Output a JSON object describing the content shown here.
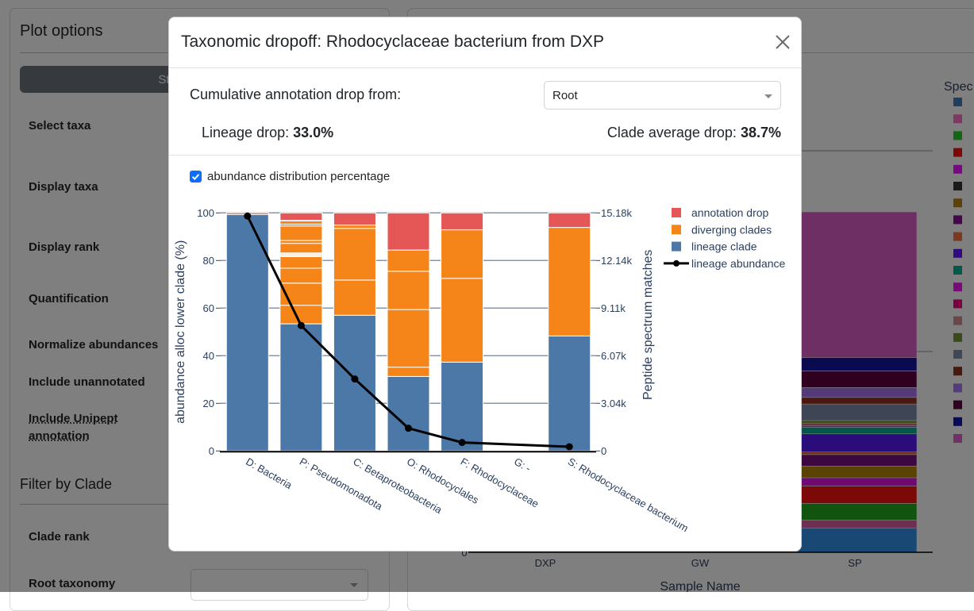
{
  "left_panel": {
    "title": "Plot options",
    "mode_button": "Stacked barplot",
    "labels": [
      "Select taxa",
      "Display taxa",
      "Display rank",
      "Quantification",
      "Normalize abundances",
      "Include unannotated"
    ],
    "unipept_label_line1": "Include Unipept",
    "unipept_label_line2": "annotation",
    "filter_title": "Filter by Clade",
    "clade_rank_label": "Clade rank",
    "root_taxonomy_label": "Root taxonomy"
  },
  "background_chart": {
    "legend_title": "Spec",
    "zero_tick": "0",
    "samples": [
      "DXP",
      "GW",
      "SP"
    ],
    "xlabel": "Sample Name",
    "legend_colors": [
      "#3e7fbf",
      "#fa75c0",
      "#27cc27",
      "#fc0c0c",
      "#ee14ff",
      "#353535",
      "#b48410",
      "#880f93",
      "#f47340",
      "#6014ff",
      "#00b493",
      "#f414f4",
      "#f4007f",
      "#d49090",
      "#74943a",
      "#7c90b0",
      "#8c3420",
      "#aa74fc",
      "#600040",
      "#1414b4",
      "#e660cc"
    ],
    "sp_segments": [
      {
        "color": "#3491e8",
        "share": 29
      },
      {
        "color": "#dc60a0",
        "share": 10
      },
      {
        "color": "#22a81e",
        "share": 20
      },
      {
        "color": "#f81010",
        "share": 21
      },
      {
        "color": "#dc14e4",
        "share": 10
      },
      {
        "color": "#b48400",
        "share": 14
      },
      {
        "color": "#781080",
        "share": 14
      },
      {
        "color": "#e06030",
        "share": 3
      },
      {
        "color": "#5418f4",
        "share": 22
      },
      {
        "color": "#00ae94",
        "share": 8
      },
      {
        "color": "#ee10ee",
        "share": 2
      },
      {
        "color": "#c07070",
        "share": 3
      },
      {
        "color": "#709020",
        "share": 3
      },
      {
        "color": "#7c8cac",
        "share": 20
      },
      {
        "color": "#943020",
        "share": 8
      },
      {
        "color": "#aa74f4",
        "share": 12
      },
      {
        "color": "#600040",
        "share": 20
      },
      {
        "color": "#1414a0",
        "share": 16
      },
      {
        "color": "#dc60c8",
        "share": 176
      }
    ]
  },
  "modal": {
    "title": "Taxonomic dropoff: Rhodocyclaceae bacterium from DXP",
    "close_icon": "close-icon",
    "drop_from_label": "Cumulative annotation drop from:",
    "drop_from_value": "Root",
    "lineage_drop_label": "Lineage drop:",
    "lineage_drop_value": "33.0%",
    "clade_avg_label": "Clade average drop:",
    "clade_avg_value": "38.7%",
    "checkbox_label": "abundance distribution percentage",
    "checkbox_checked": true
  },
  "chart_data": {
    "type": "bar",
    "barmode": "stack",
    "categories": [
      "D: Bacteria",
      "P: Pseudomonadota",
      "C: Betaproteobacteria",
      "O: Rhodocyclales",
      "F: Rhodocyclaceae",
      "G: -",
      "S: Rhodocyclaceae bacterium"
    ],
    "ylabel": "abundance alloc lower clade (%)",
    "y2label": "Peptide spectrum matches",
    "ylim": [
      0,
      100
    ],
    "y2lim": [
      0,
      15180
    ],
    "yticks": [
      "0",
      "20",
      "40",
      "60",
      "80",
      "100"
    ],
    "ytick_values": [
      0,
      20,
      40,
      60,
      80,
      100
    ],
    "y2ticks": [
      "0",
      "3.04k",
      "6.07k",
      "9.11k",
      "12.14k",
      "15.18k"
    ],
    "y2tick_values": [
      0,
      3036,
      6072,
      9108,
      12144,
      15180
    ],
    "grid": true,
    "legend_position": "top-right",
    "colors": {
      "annotation_drop": "#e45756",
      "diverging_clades": "#f58518",
      "lineage_clade": "#4c78a8",
      "lineage_abundance": "#000000"
    },
    "legend": [
      "annotation drop",
      "diverging clades",
      "lineage clade",
      "lineage abundance"
    ],
    "series": [
      {
        "name": "lineage clade",
        "values": [
          99.3,
          53.4,
          57.0,
          31.3,
          37.3,
          null,
          48.3
        ]
      },
      {
        "name": "diverging clades",
        "segments": [
          [],
          [
            7.8,
            9.3,
            6.3,
            4.8,
            0.4,
            0.4,
            0.4,
            0.4,
            4.0,
            1.2,
            6.1,
            0.8,
            1.3,
            0.3
          ],
          [
            14.8,
            21.7,
            1.4
          ],
          [
            3.9,
            24.2,
            16.1,
            8.9
          ],
          [
            35.2,
            20.4
          ],
          [],
          [
            45.6
          ]
        ]
      },
      {
        "name": "annotation drop",
        "values": [
          0.7,
          3.1,
          5.1,
          15.6,
          7.1,
          null,
          6.1
        ]
      },
      {
        "name": "lineage abundance",
        "axis": "y2",
        "values": [
          14980,
          8000,
          4590,
          1450,
          540,
          null,
          270
        ]
      }
    ]
  }
}
